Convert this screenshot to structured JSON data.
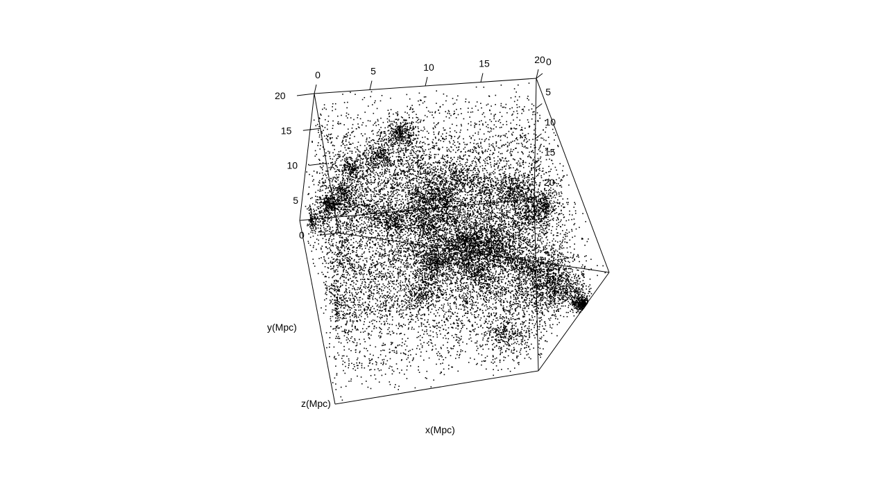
{
  "chart_data": {
    "type": "scatter",
    "dimensions": 3,
    "title": "",
    "xlabel": "x(Mpc)",
    "ylabel": "y(Mpc)",
    "zlabel": "z(Mpc)",
    "xlim": [
      0,
      20
    ],
    "ylim": [
      0,
      20
    ],
    "zlim": [
      0,
      20
    ],
    "ticks": {
      "x": [
        0,
        5,
        10,
        15,
        20
      ],
      "y": [
        0,
        5,
        10,
        15,
        20
      ],
      "z": [
        0,
        5,
        10,
        15,
        20
      ]
    },
    "point_color": "#000000",
    "point_count": 18000,
    "box": true,
    "grid": false,
    "legend": false,
    "points": "approx. 18000 galaxy positions filling the cube 0–20 Mpc on each axis, denser in filaments and clusters"
  }
}
